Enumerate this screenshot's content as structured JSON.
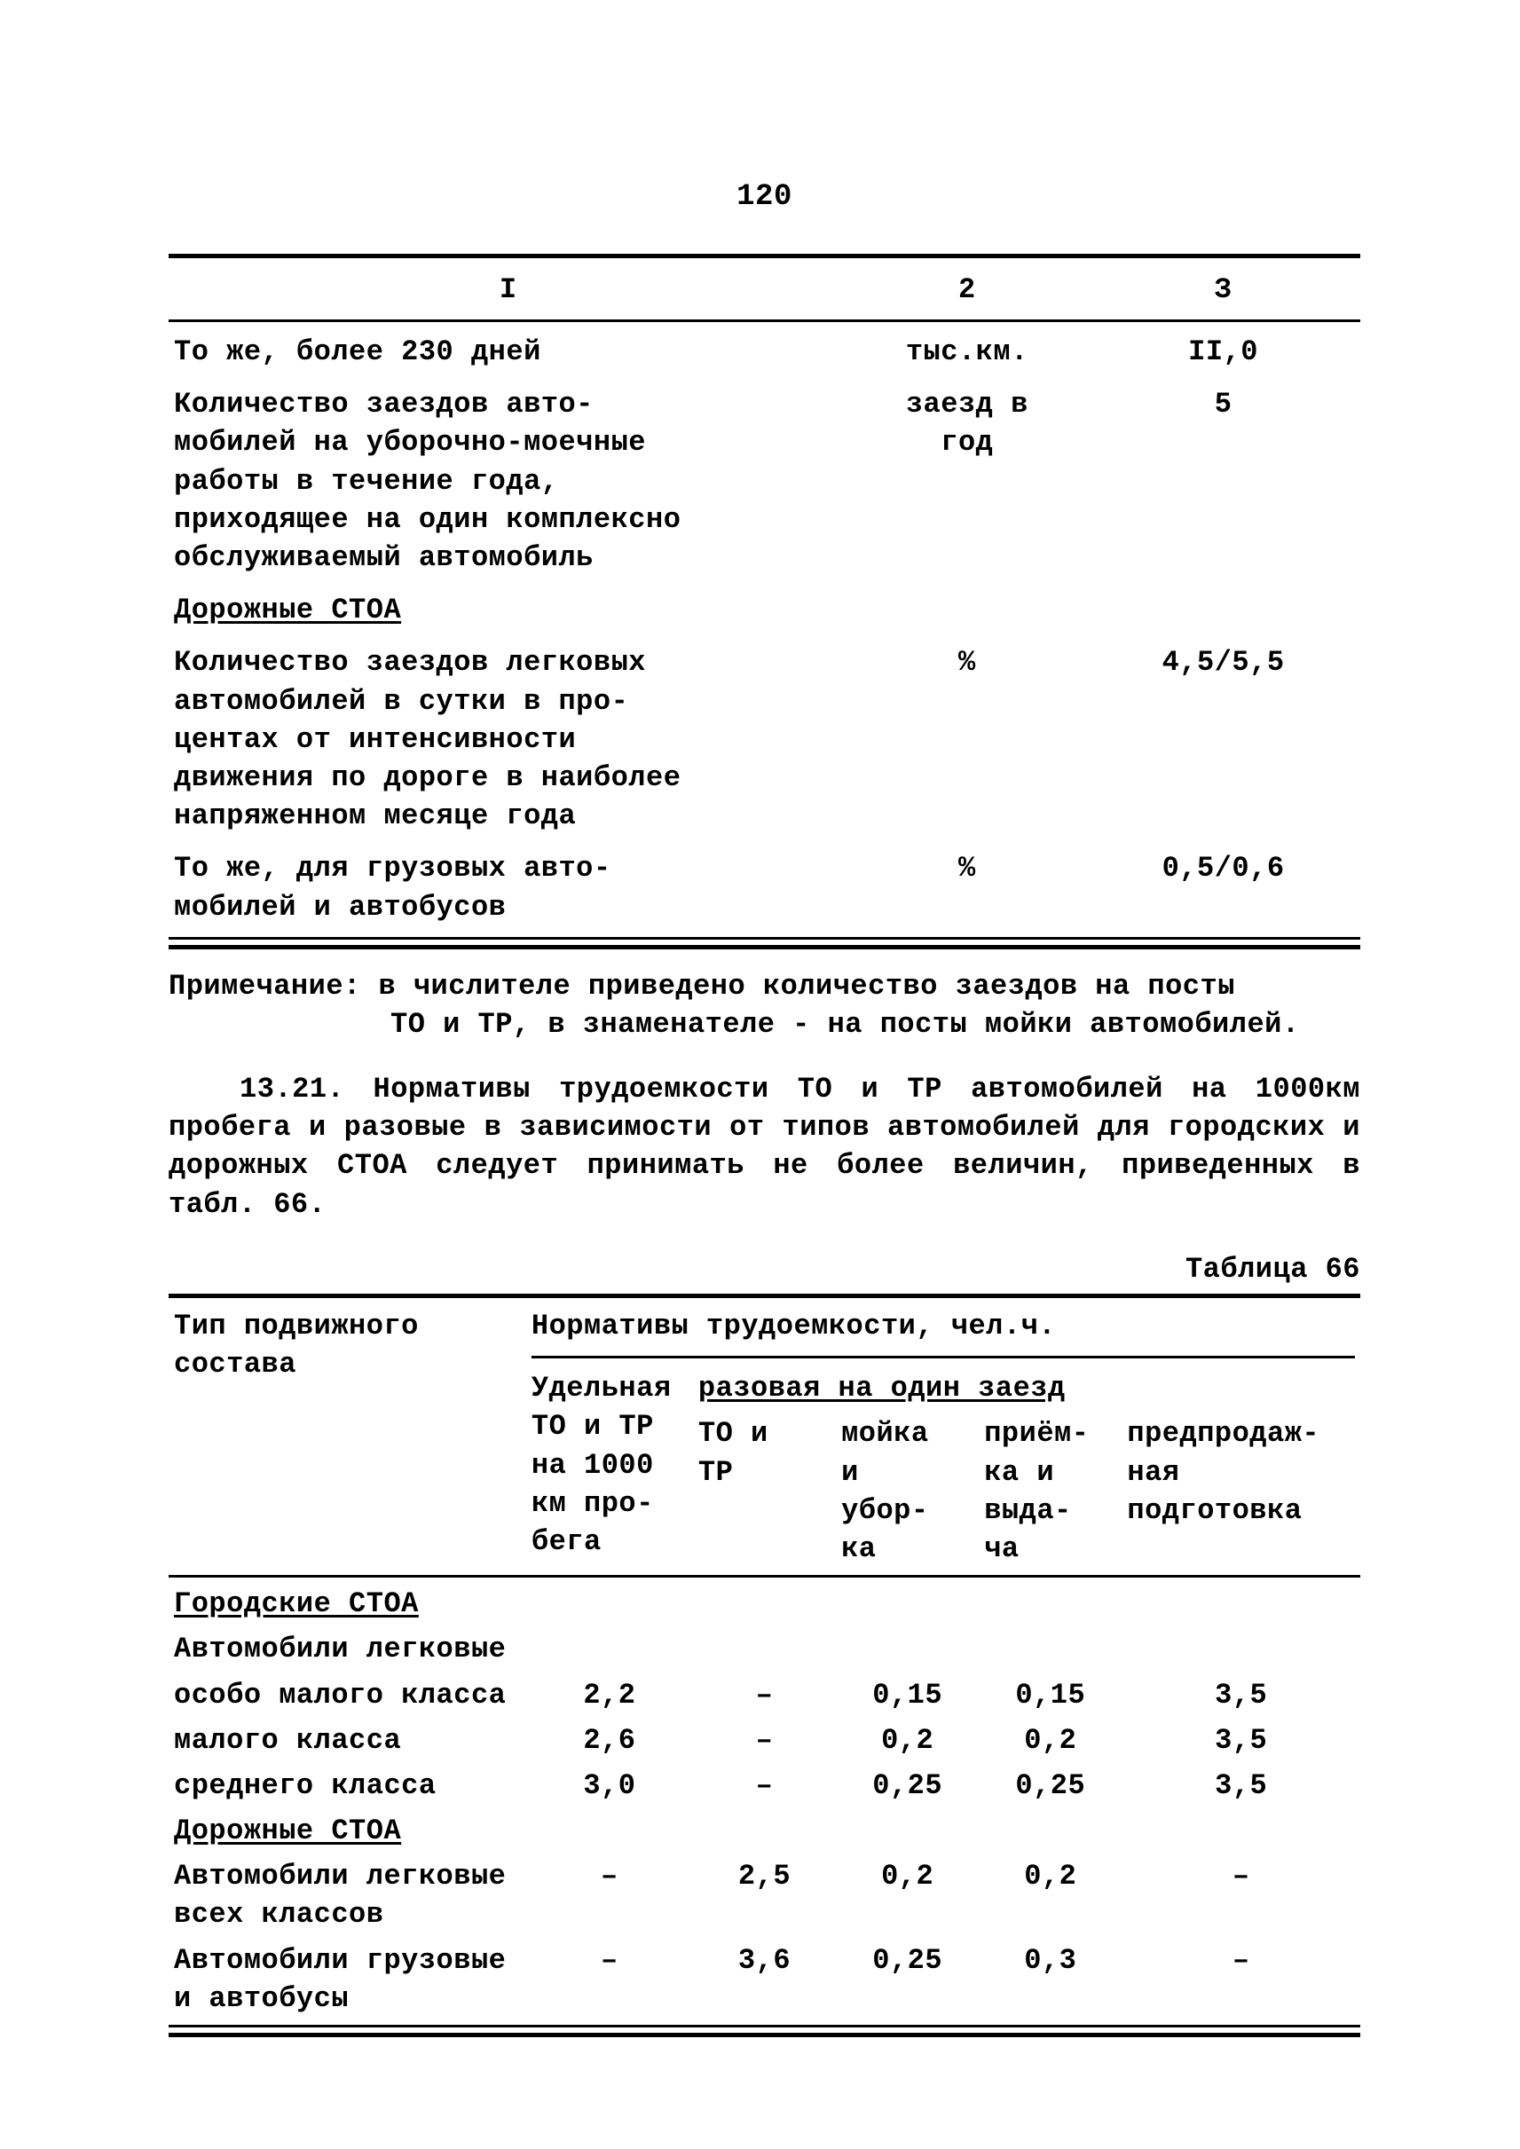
{
  "page_number": "120",
  "table1": {
    "headers": {
      "c1": "I",
      "c2": "2",
      "c3": "З"
    },
    "rows": [
      {
        "c1": "То же, более 230 дней",
        "c2": "тыс.км.",
        "c3": "II,0"
      },
      {
        "c1": "Количество заездов авто-\nмобилей на уборочно-моечные\nработы в течение года,\nприходящее на один комплексно\nобслуживаемый автомобиль",
        "c2": "заезд в\nгод",
        "c3": "5"
      },
      {
        "c1_style": "underline",
        "c1": "Дорожные СТОА",
        "c2": "",
        "c3": ""
      },
      {
        "c1": "Количество заездов легковых\nавтомобилей в сутки в про-\nцентах от интенсивности\nдвижения по дороге в наиболее\nнапряженном месяце года",
        "c2": "%",
        "c3": "4,5/5,5"
      },
      {
        "c1": "То же, для грузовых авто-\nмобилей и автобусов",
        "c2": "%",
        "c3": "0,5/0,6"
      }
    ]
  },
  "note_label": "Примечание:",
  "note_line1": "в числителе приведено количество заездов на посты",
  "note_line2": "ТО и ТР, в знаменателе - на посты мойки автомобилей.",
  "paragraph": "13.21. Нормативы трудоемкости ТО и ТР автомобилей на 1000км пробега и разовые в зависимости от типов автомобилей для городских и дорожных СТОА следует принимать не более величин, приведенных в табл. 66.",
  "table66_label": "Таблица 66",
  "table2": {
    "head": {
      "type_label": "Тип подвижного\nсостава",
      "norm_header": "Нормативы трудоемкости, чел.ч.",
      "sub1": "Удельная\nТО и ТР\nна 1000\nкм про-\nбега",
      "sub_row_header": "разовая на один заезд",
      "sub2": "ТО и\nТР",
      "sub3": "мойка\nи\nубор-\nка",
      "sub4": "приём-\nка и\nвыда-\nча",
      "sub5": "предпродаж-\nная\nподготовка"
    },
    "rows": [
      {
        "c1_style": "underline",
        "c1": "Городские СТОА"
      },
      {
        "c1": "Автомобили легковые"
      },
      {
        "c1": "особо малого класса",
        "c2": "2,2",
        "c3": "–",
        "c4": "0,15",
        "c5": "0,15",
        "c6": "3,5"
      },
      {
        "c1": "малого класса",
        "c2": "2,6",
        "c3": "–",
        "c4": "0,2",
        "c5": "0,2",
        "c6": "3,5"
      },
      {
        "c1": "среднего класса",
        "c2": "3,0",
        "c3": "–",
        "c4": "0,25",
        "c5": "0,25",
        "c6": "3,5"
      },
      {
        "c1_style": "underline",
        "c1": "Дорожные СТОА"
      },
      {
        "c1": "Автомобили легковые\nвсех классов",
        "c2": "–",
        "c3": "2,5",
        "c4": "0,2",
        "c5": "0,2",
        "c6": "–"
      },
      {
        "c1": "Автомобили грузовые\nи автобусы",
        "c2": "–",
        "c3": "3,6",
        "c4": "0,25",
        "c5": "0,3",
        "c6": "–"
      }
    ]
  }
}
